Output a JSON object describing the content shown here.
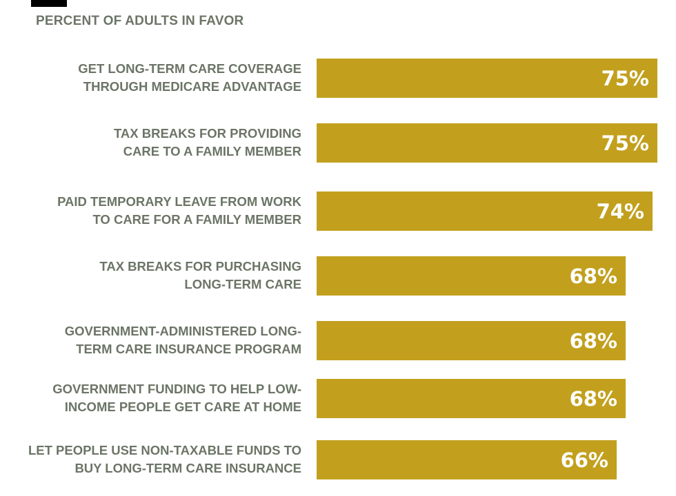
{
  "subtitle": "PERCENT OF ADULTS IN FAVOR",
  "colors": {
    "bar": "#c2a01e",
    "label": "#6b7566",
    "value_text": "#ffffff"
  },
  "chart_data": {
    "type": "bar",
    "orientation": "horizontal",
    "title": "",
    "subtitle": "PERCENT OF ADULTS IN FAVOR",
    "unit": "%",
    "categories": [
      "GET LONG-TERM CARE COVERAGE THROUGH MEDICARE ADVANTAGE",
      "TAX BREAKS FOR PROVIDING CARE TO A FAMILY MEMBER",
      "PAID TEMPORARY LEAVE FROM WORK TO CARE FOR A FAMILY MEMBER",
      "TAX BREAKS FOR PURCHASING LONG-TERM CARE",
      "GOVERNMENT-ADMINISTERED LONG-TERM CARE INSURANCE PROGRAM",
      "GOVERNMENT FUNDING TO HELP LOW-INCOME PEOPLE GET CARE AT HOME",
      "LET PEOPLE USE NON-TAXABLE FUNDS TO BUY LONG-TERM CARE INSURANCE"
    ],
    "label_lines": [
      [
        "GET LONG-TERM CARE COVERAGE",
        "THROUGH MEDICARE ADVANTAGE"
      ],
      [
        "TAX BREAKS FOR PROVIDING",
        "CARE TO A FAMILY MEMBER"
      ],
      [
        "PAID TEMPORARY LEAVE FROM WORK",
        "TO CARE FOR A FAMILY MEMBER"
      ],
      [
        "TAX BREAKS FOR PURCHASING",
        "LONG-TERM CARE"
      ],
      [
        "GOVERNMENT-ADMINISTERED LONG-",
        "TERM CARE INSURANCE PROGRAM"
      ],
      [
        "GOVERNMENT FUNDING TO HELP LOW-",
        "INCOME PEOPLE GET CARE AT HOME"
      ],
      [
        "LET PEOPLE USE NON-TAXABLE FUNDS TO",
        "BUY LONG-TERM CARE INSURANCE"
      ]
    ],
    "values": [
      75,
      75,
      74,
      68,
      68,
      68,
      66
    ],
    "value_labels": [
      "75%",
      "75%",
      "74%",
      "68%",
      "68%",
      "68%",
      "66%"
    ],
    "xlim": [
      0,
      75
    ],
    "grid": false,
    "legend": "none"
  }
}
